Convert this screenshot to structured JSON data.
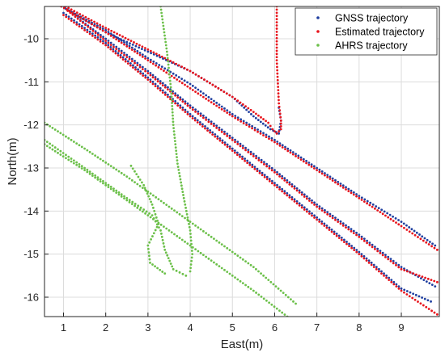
{
  "chart_data": {
    "type": "scatter",
    "xlabel": "East(m)",
    "ylabel": "North(m)",
    "xlim": [
      0.55,
      9.9
    ],
    "ylim": [
      -16.45,
      -9.25
    ],
    "xticks": [
      "1",
      "2",
      "3",
      "4",
      "5",
      "6",
      "7",
      "8",
      "9"
    ],
    "yticks": [
      "-10",
      "-11",
      "-12",
      "-13",
      "-14",
      "-15",
      "-16"
    ],
    "grid": true,
    "legend_position": "top-right",
    "series": [
      {
        "name": "GNSS trajectory",
        "color": "#1f3fa0",
        "segments": [
          [
            [
              1.05,
              -9.3
            ],
            [
              2.0,
              -9.85
            ],
            [
              3.0,
              -10.3
            ],
            [
              4.0,
              -10.75
            ],
            [
              5.0,
              -11.35
            ],
            [
              5.5,
              -11.8
            ],
            [
              5.9,
              -12.1
            ],
            [
              6.1,
              -12.2
            ],
            [
              6.15,
              -11.9
            ],
            [
              6.1,
              -11.6
            ]
          ],
          [
            [
              0.95,
              -9.25
            ],
            [
              2.0,
              -9.8
            ],
            [
              3.0,
              -10.45
            ],
            [
              4.0,
              -11.05
            ],
            [
              5.0,
              -11.75
            ],
            [
              6.0,
              -12.35
            ],
            [
              7.0,
              -13.0
            ],
            [
              8.0,
              -13.65
            ],
            [
              9.0,
              -14.25
            ],
            [
              9.8,
              -14.8
            ]
          ],
          [
            [
              1.1,
              -9.35
            ],
            [
              2.0,
              -10.0
            ],
            [
              3.0,
              -10.75
            ],
            [
              4.0,
              -11.55
            ],
            [
              5.0,
              -12.3
            ],
            [
              6.0,
              -13.05
            ],
            [
              7.0,
              -13.85
            ],
            [
              8.0,
              -14.55
            ],
            [
              9.0,
              -15.3
            ],
            [
              9.8,
              -15.75
            ]
          ],
          [
            [
              1.0,
              -9.4
            ],
            [
              2.0,
              -10.1
            ],
            [
              3.0,
              -10.9
            ],
            [
              4.0,
              -11.75
            ],
            [
              5.0,
              -12.55
            ],
            [
              6.0,
              -13.35
            ],
            [
              7.0,
              -14.15
            ],
            [
              8.0,
              -14.95
            ],
            [
              9.0,
              -15.8
            ],
            [
              9.7,
              -16.1
            ]
          ]
        ]
      },
      {
        "name": "Estimated trajectory",
        "color": "#e8141c",
        "segments": [
          [
            [
              1.05,
              -9.25
            ],
            [
              2.0,
              -9.75
            ],
            [
              3.0,
              -10.25
            ],
            [
              4.0,
              -10.75
            ],
            [
              5.0,
              -11.35
            ],
            [
              5.5,
              -11.7
            ],
            [
              5.85,
              -11.95
            ],
            [
              5.95,
              -12.1
            ],
            [
              6.05,
              -12.2
            ],
            [
              6.15,
              -12.1
            ],
            [
              6.15,
              -11.9
            ],
            [
              6.1,
              -11.5
            ],
            [
              6.05,
              -10.5
            ],
            [
              6.05,
              -9.25
            ]
          ],
          [
            [
              0.95,
              -9.25
            ],
            [
              2.0,
              -9.85
            ],
            [
              3.0,
              -10.5
            ],
            [
              4.0,
              -11.15
            ],
            [
              5.0,
              -11.8
            ],
            [
              6.0,
              -12.4
            ],
            [
              7.0,
              -13.05
            ],
            [
              8.0,
              -13.7
            ],
            [
              9.0,
              -14.35
            ],
            [
              9.85,
              -14.9
            ]
          ],
          [
            [
              1.1,
              -9.35
            ],
            [
              2.0,
              -10.05
            ],
            [
              3.0,
              -10.8
            ],
            [
              4.0,
              -11.6
            ],
            [
              5.0,
              -12.35
            ],
            [
              6.0,
              -13.1
            ],
            [
              7.0,
              -13.9
            ],
            [
              8.0,
              -14.6
            ],
            [
              9.0,
              -15.35
            ],
            [
              9.85,
              -15.65
            ]
          ],
          [
            [
              1.0,
              -9.45
            ],
            [
              2.0,
              -10.15
            ],
            [
              3.0,
              -10.95
            ],
            [
              4.0,
              -11.8
            ],
            [
              5.0,
              -12.6
            ],
            [
              6.0,
              -13.4
            ],
            [
              7.0,
              -14.2
            ],
            [
              8.0,
              -15.0
            ],
            [
              9.0,
              -15.85
            ],
            [
              9.85,
              -16.4
            ]
          ]
        ]
      },
      {
        "name": "AHRS trajectory",
        "color": "#6cc04a",
        "segments": [
          [
            [
              3.3,
              -9.25
            ],
            [
              3.45,
              -10.3
            ],
            [
              3.55,
              -11.2
            ],
            [
              3.6,
              -12.0
            ],
            [
              3.7,
              -12.9
            ],
            [
              3.85,
              -13.7
            ],
            [
              4.0,
              -14.45
            ],
            [
              4.05,
              -15.0
            ],
            [
              4.0,
              -15.4
            ]
          ],
          [
            [
              0.55,
              -12.35
            ],
            [
              1.5,
              -13.0
            ],
            [
              2.5,
              -13.7
            ],
            [
              3.1,
              -14.1
            ],
            [
              3.3,
              -14.45
            ],
            [
              3.4,
              -14.9
            ],
            [
              3.6,
              -15.35
            ],
            [
              3.9,
              -15.5
            ]
          ],
          [
            [
              0.55,
              -11.95
            ],
            [
              1.5,
              -12.55
            ],
            [
              2.5,
              -13.2
            ],
            [
              3.5,
              -13.9
            ],
            [
              4.5,
              -14.6
            ],
            [
              5.5,
              -15.3
            ],
            [
              6.5,
              -16.15
            ]
          ],
          [
            [
              0.55,
              -12.45
            ],
            [
              1.5,
              -13.05
            ],
            [
              2.5,
              -13.75
            ],
            [
              3.5,
              -14.45
            ],
            [
              4.5,
              -15.15
            ],
            [
              5.5,
              -15.85
            ],
            [
              6.3,
              -16.45
            ]
          ],
          [
            [
              2.6,
              -12.95
            ],
            [
              2.9,
              -13.4
            ],
            [
              3.1,
              -13.85
            ],
            [
              3.25,
              -14.3
            ],
            [
              3.0,
              -14.8
            ],
            [
              3.05,
              -15.2
            ],
            [
              3.4,
              -15.45
            ]
          ]
        ]
      }
    ]
  }
}
